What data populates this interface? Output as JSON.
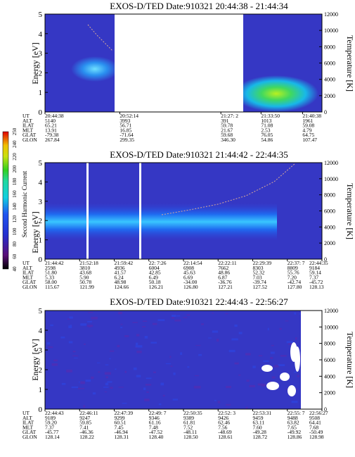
{
  "chart_data": [
    {
      "type": "heatmap",
      "title": "EXOS-D/TED   Date:910321  20:44:38 - 21:44:34",
      "ylabel": "Energy [eV]",
      "y2label": "Temperature [K]",
      "ylim": [
        0,
        5
      ],
      "y2lim": [
        0,
        12000
      ],
      "yticks": [
        "0",
        "1",
        "2",
        "3",
        "4",
        "5"
      ],
      "y2ticks": [
        "0",
        "2000",
        "4000",
        "6000",
        "8000",
        "10000",
        "12000"
      ],
      "gap": [
        0.3,
        0.635
      ],
      "hotspot": {
        "x": 0.16,
        "y": 2.6,
        "level": "light-blue"
      },
      "hotspot2": {
        "x": 0.82,
        "y": 0.8,
        "level": "yellow-green"
      },
      "temperature_trace": [
        [
          0.08,
          4.3
        ],
        [
          0.12,
          3.7
        ],
        [
          0.16,
          3.1
        ],
        [
          0.2,
          2.8
        ]
      ],
      "table": {
        "row_labels": [
          "UT",
          "ALT",
          "ILAT",
          "MLT",
          "GLAT",
          "GLON"
        ],
        "columns": [
          {
            "pos": 0.0,
            "values": [
              "20:44:38",
              "5140",
              "65.21",
              "13.91",
              "-79.38",
              "267.84"
            ]
          },
          {
            "pos": 0.27,
            "values": [
              "20:52:14",
              "3993",
              "56.71",
              "16.85",
              "-71.64",
              "299.35"
            ]
          },
          {
            "pos": 0.635,
            "values": [
              "21:27: 2",
              "391",
              "59.78",
              "21.67",
              "59.68",
              "346.30"
            ]
          },
          {
            "pos": 0.78,
            "values": [
              "21:33:50",
              "1013",
              "71.08",
              "2.53",
              "76.05",
              "54.86"
            ]
          },
          {
            "pos": 0.93,
            "values": [
              "21:40:38",
              "1961",
              "59.08",
              "4.79",
              "64.75",
              "107.47"
            ]
          }
        ]
      }
    },
    {
      "type": "heatmap",
      "title": "EXOS-D/TED   Date:910321  21:44:42 - 22:44:35",
      "ylabel": "Energy [eV]",
      "y2label": "Temperature [K]",
      "ylim": [
        0,
        5
      ],
      "y2lim": [
        0,
        12000
      ],
      "yticks": [
        "0",
        "1",
        "2",
        "3",
        "4",
        "5"
      ],
      "y2ticks": [
        "0",
        "2000",
        "4000",
        "6000",
        "8000",
        "10000",
        "12000"
      ],
      "white_lines": [
        0.27,
        0.48
      ],
      "band_center_ev": 2.1,
      "temperature_trace": [
        [
          0.5,
          1.7
        ],
        [
          0.6,
          1.9
        ],
        [
          0.7,
          2.1
        ],
        [
          0.8,
          2.5
        ],
        [
          0.9,
          3.3
        ],
        [
          0.97,
          4.4
        ]
      ],
      "table": {
        "row_labels": [
          "UT",
          "ALT",
          "ILAT",
          "MLT",
          "GLAT",
          "GLON"
        ],
        "columns": [
          {
            "pos": 0.0,
            "values": [
              "21:44:42",
              "2598",
              "51.80",
              "5.33",
              "58.00",
              "115.67"
            ]
          },
          {
            "pos": 0.125,
            "values": [
              "21:52:18",
              "3810",
              "43.68",
              "5.90",
              "50.78",
              "121.99"
            ]
          },
          {
            "pos": 0.25,
            "values": [
              "21:59:42",
              "4936",
              "41.57",
              "6.24",
              "48.98",
              "124.66"
            ]
          },
          {
            "pos": 0.375,
            "values": [
              "22: 7:26",
              "6004",
              "42.85",
              "6.49",
              "50.18",
              "126.21"
            ]
          },
          {
            "pos": 0.5,
            "values": [
              "22:14:54",
              "6908",
              "45.63",
              "6.69",
              "-34.00",
              "126.80"
            ]
          },
          {
            "pos": 0.625,
            "values": [
              "22:22:11",
              "7662",
              "48.86",
              "6.87",
              "-36.76",
              "127.21"
            ]
          },
          {
            "pos": 0.75,
            "values": [
              "22:29:39",
              "8303",
              "52.32",
              "7.03",
              "-39.74",
              "127.52"
            ]
          },
          {
            "pos": 0.875,
            "values": [
              "22:37: 7",
              "8809",
              "55.76",
              "7.20",
              "-42.74",
              "127.80"
            ]
          },
          {
            "pos": 1.0,
            "values": [
              "22:44:35",
              "9184",
              "59.14",
              "7.37",
              "-45.72",
              "128.13"
            ]
          }
        ]
      }
    },
    {
      "type": "heatmap",
      "title": "EXOS-D/TED   Date:910321  22:44:43 - 22:56:27",
      "ylabel": "Energy [eV]",
      "y2label": "Temperature [K]",
      "ylim": [
        0,
        5
      ],
      "y2lim": [
        0,
        12000
      ],
      "yticks": [
        "0",
        "1",
        "2",
        "3",
        "4",
        "5"
      ],
      "y2ticks": [
        "0",
        "2000",
        "4000",
        "6000",
        "8000",
        "10000",
        "12000"
      ],
      "gap": [
        0.94,
        1.0
      ],
      "table": {
        "row_labels": [
          "UT",
          "ALT",
          "ILAT",
          "MLT",
          "GLAT",
          "GLON"
        ],
        "columns": [
          {
            "pos": 0.0,
            "values": [
              "22:44:43",
              "9189",
              "59.20",
              "7.37",
              "-45.77",
              "128.14"
            ]
          },
          {
            "pos": 0.125,
            "values": [
              "22:46:11",
              "9247",
              "59.85",
              "7.41",
              "-46.36",
              "128.22"
            ]
          },
          {
            "pos": 0.25,
            "values": [
              "22:47:39",
              "9299",
              "60.51",
              "7.45",
              "-46.94",
              "128.31"
            ]
          },
          {
            "pos": 0.375,
            "values": [
              "22:49: 7",
              "9346",
              "61.16",
              "7.48",
              "-47.52",
              "128.40"
            ]
          },
          {
            "pos": 0.5,
            "values": [
              "22:50:35",
              "9389",
              "61.81",
              "7.52",
              "-48.11",
              "128.50"
            ]
          },
          {
            "pos": 0.625,
            "values": [
              "22:52: 3",
              "9426",
              "62.46",
              "7.56",
              "-48.69",
              "128.61"
            ]
          },
          {
            "pos": 0.75,
            "values": [
              "22:53:31",
              "9459",
              "63.11",
              "7.60",
              "-49.28",
              "128.72"
            ]
          },
          {
            "pos": 0.875,
            "values": [
              "22:55: 7",
              "9488",
              "63.82",
              "7.65",
              "-49.92",
              "128.86"
            ]
          },
          {
            "pos": 1.0,
            "values": [
              "22:56:27",
              "9508",
              "64.41",
              "7.68",
              "-50.49",
              "128.98"
            ]
          }
        ]
      }
    }
  ],
  "colorbar": {
    "label": "Second Harmonic Current",
    "ticks": [
      "40",
      "60",
      "80",
      "100",
      "120",
      "140",
      "160",
      "180",
      "200",
      "220",
      "240",
      "250"
    ],
    "colors": [
      "#000000",
      "#5a0f78",
      "#3d1fa8",
      "#2530d0",
      "#1f55f0",
      "#1a9ee8",
      "#10cfe0",
      "#20d8a0",
      "#30d020",
      "#c8e010",
      "#f0c000",
      "#f06000",
      "#e00000"
    ]
  },
  "colors": {
    "background_low": "#2a2db8",
    "background_mid": "#3c3ccf",
    "band": "#1e78f0",
    "band_core": "#5ad2ff",
    "hot": "#90e020",
    "trace": "#d8a898"
  }
}
